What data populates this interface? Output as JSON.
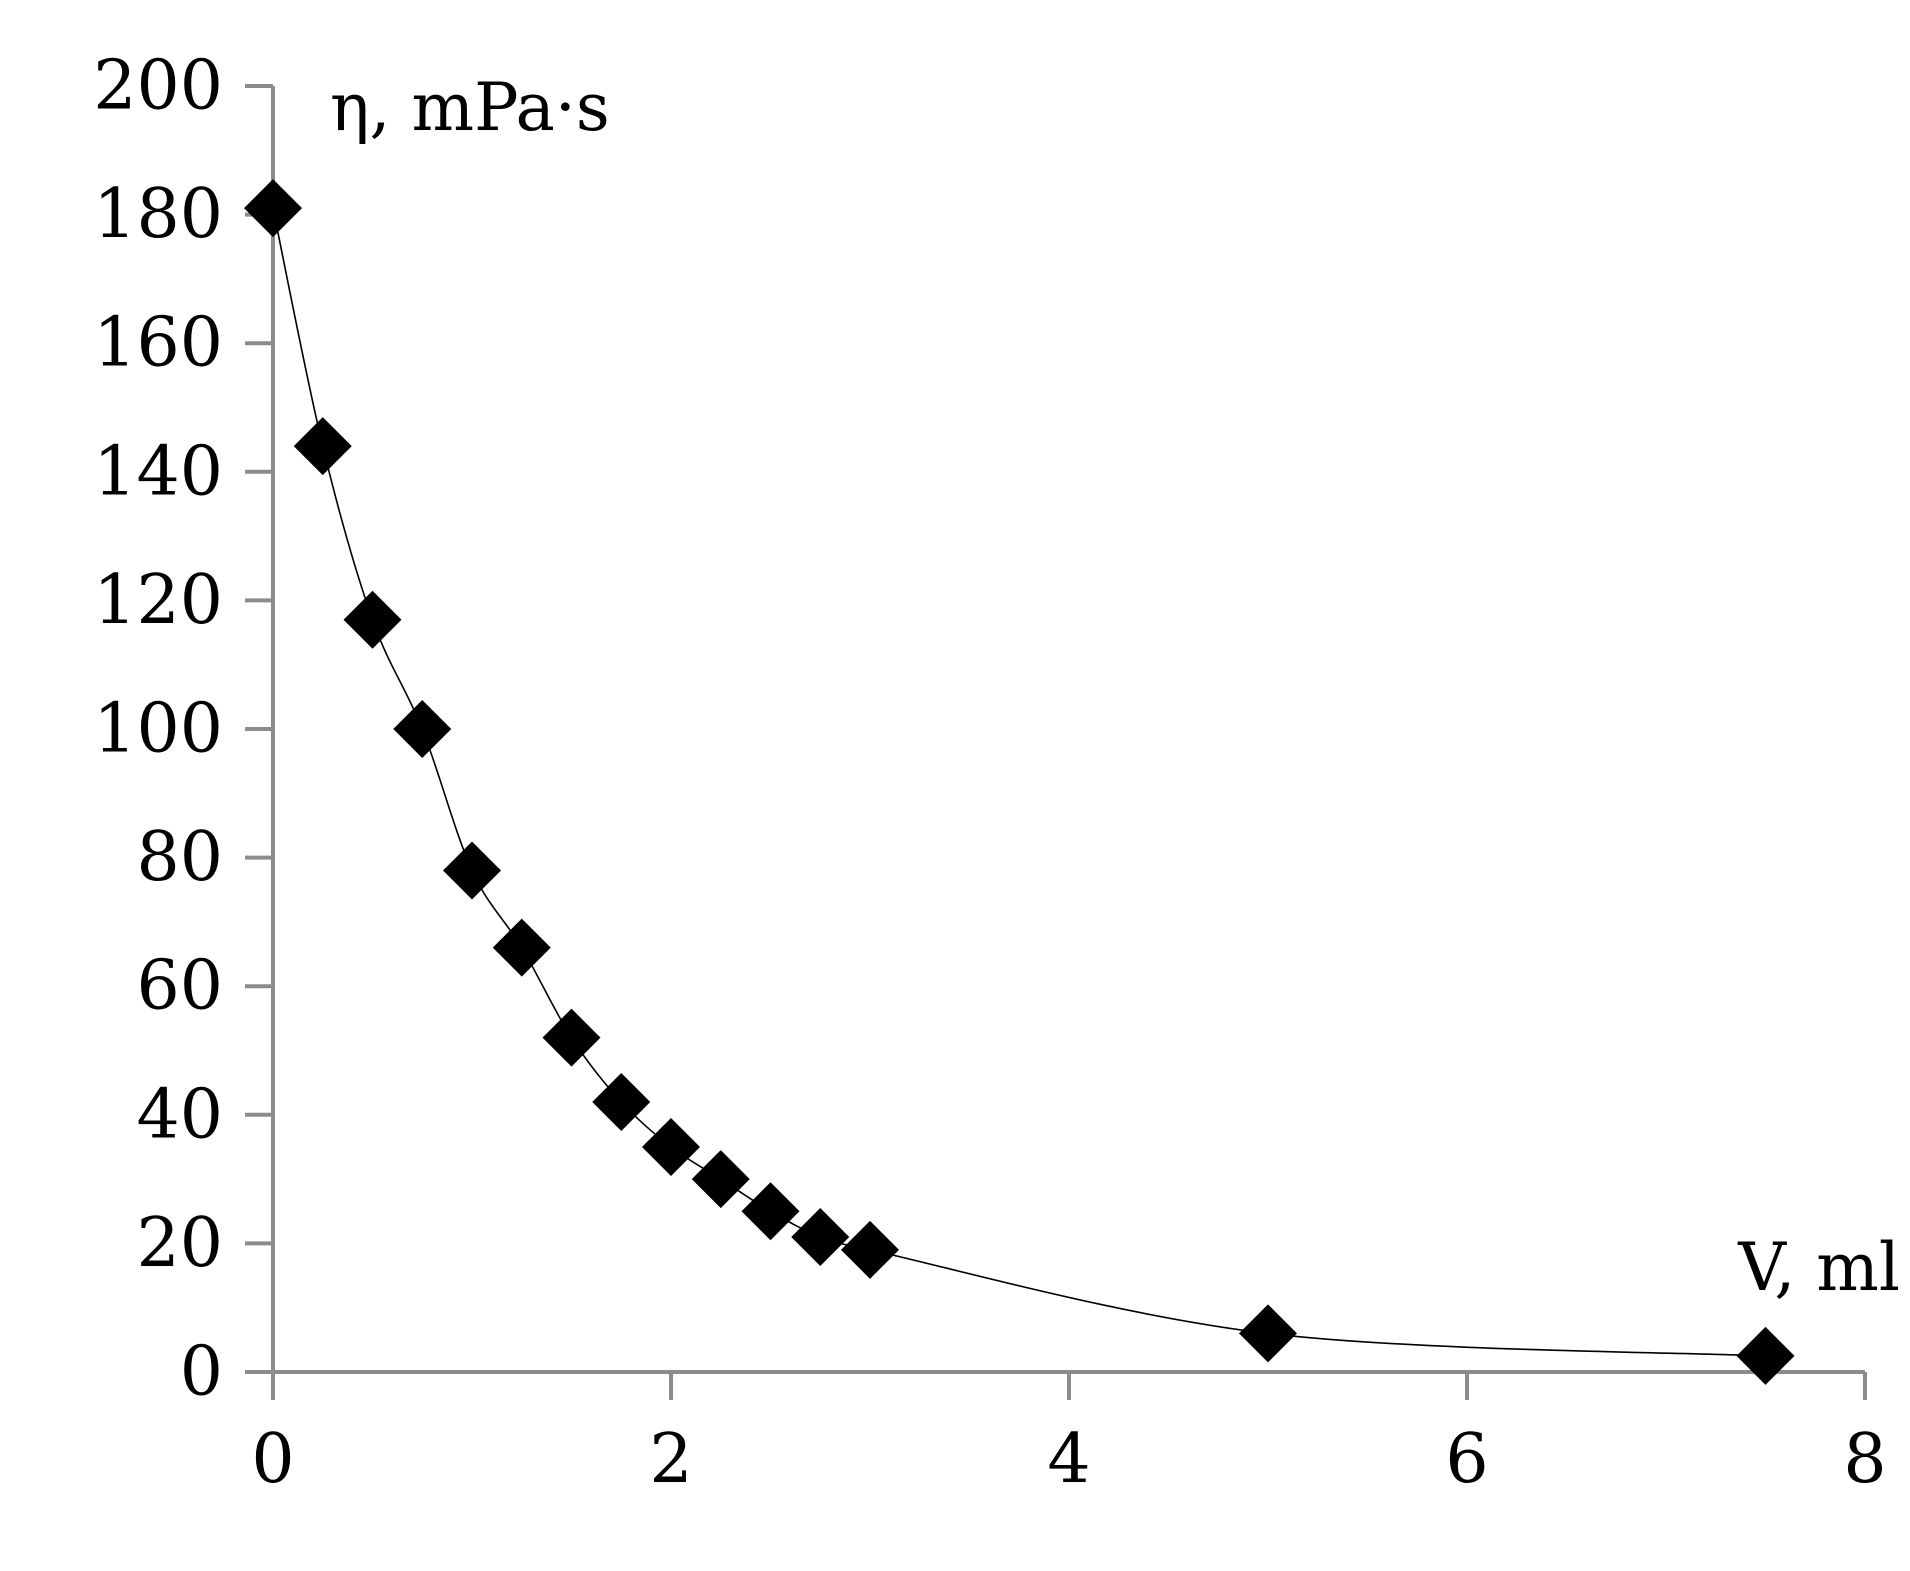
{
  "chart_data": {
    "type": "scatter",
    "title": "",
    "xlabel": "V, ml",
    "ylabel": "η, mPa·s",
    "xlim": [
      0,
      8
    ],
    "ylim": [
      0,
      200
    ],
    "x_ticks": [
      "0",
      "2",
      "4",
      "6",
      "8"
    ],
    "y_ticks": [
      "0",
      "20",
      "40",
      "60",
      "80",
      "100",
      "120",
      "140",
      "160",
      "180",
      "200"
    ],
    "grid": false,
    "legend": "none",
    "marker": "diamond",
    "trendline": "smooth",
    "colors": {
      "marker": "#000000",
      "line": "#000000",
      "axis": "#8c8c8c"
    },
    "series": [
      {
        "x": [
          0,
          0.25,
          0.5,
          0.75,
          1.0,
          1.25,
          1.5,
          1.75,
          2.0,
          2.25,
          2.5,
          2.75,
          3.0,
          5.0,
          7.5
        ],
        "y": [
          181,
          144,
          117,
          100,
          78,
          66,
          52,
          42,
          35,
          30,
          25,
          21,
          19,
          6,
          2.5
        ]
      }
    ]
  }
}
